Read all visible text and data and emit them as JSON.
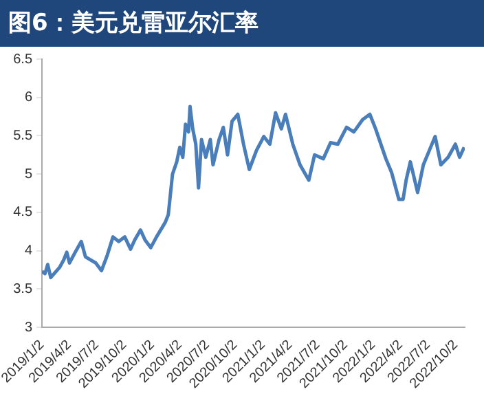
{
  "chart_data": {
    "type": "line",
    "title": "图6：美元兑雷亚尔汇率",
    "x": [
      "2019-01-02",
      "2019-01-12",
      "2019-01-21",
      "2019-01-31",
      "2019-03-01",
      "2019-03-15",
      "2019-03-25",
      "2019-04-03",
      "2019-04-22",
      "2019-05-12",
      "2019-05-26",
      "2019-06-29",
      "2019-07-18",
      "2019-08-06",
      "2019-08-25",
      "2019-09-13",
      "2019-10-03",
      "2019-10-22",
      "2019-11-05",
      "2019-11-24",
      "2019-12-09",
      "2019-12-28",
      "2020-01-16",
      "2020-02-14",
      "2020-02-24",
      "2020-03-09",
      "2020-03-23",
      "2020-04-02",
      "2020-04-12",
      "2020-04-21",
      "2020-05-01",
      "2020-05-06",
      "2020-05-15",
      "2020-05-25",
      "2020-06-03",
      "2020-06-13",
      "2020-06-27",
      "2020-07-12",
      "2020-07-21",
      "2020-08-10",
      "2020-08-24",
      "2020-09-07",
      "2020-09-22",
      "2020-10-11",
      "2020-10-30",
      "2020-11-18",
      "2020-12-12",
      "2021-01-05",
      "2021-01-25",
      "2021-02-13",
      "2021-03-04",
      "2021-03-18",
      "2021-04-11",
      "2021-05-05",
      "2021-06-03",
      "2021-06-22",
      "2021-07-21",
      "2021-08-14",
      "2021-09-07",
      "2021-10-06",
      "2021-10-30",
      "2021-11-28",
      "2021-12-22",
      "2022-01-10",
      "2022-02-13",
      "2022-03-04",
      "2022-03-28",
      "2022-04-11",
      "2022-04-21",
      "2022-05-05",
      "2022-05-29",
      "2022-06-17",
      "2022-07-07",
      "2022-07-26",
      "2022-08-14",
      "2022-09-07",
      "2022-10-01",
      "2022-10-15",
      "2022-10-30"
    ],
    "series": [
      {
        "color": "#4a7ebb",
        "values": [
          3.73,
          3.7,
          3.82,
          3.65,
          3.78,
          3.88,
          3.98,
          3.84,
          3.98,
          4.12,
          3.92,
          3.84,
          3.74,
          3.94,
          4.18,
          4.12,
          4.18,
          4.02,
          4.14,
          4.27,
          4.14,
          4.04,
          4.18,
          4.37,
          4.47,
          5.0,
          5.16,
          5.35,
          5.22,
          5.65,
          5.55,
          5.88,
          5.59,
          5.39,
          4.82,
          5.45,
          5.22,
          5.45,
          5.12,
          5.45,
          5.61,
          5.25,
          5.69,
          5.78,
          5.39,
          5.06,
          5.31,
          5.49,
          5.39,
          5.8,
          5.59,
          5.78,
          5.39,
          5.12,
          4.92,
          5.25,
          5.2,
          5.41,
          5.39,
          5.61,
          5.55,
          5.71,
          5.78,
          5.59,
          5.2,
          5.02,
          4.67,
          4.67,
          4.92,
          5.16,
          4.76,
          5.12,
          5.31,
          5.49,
          5.12,
          5.22,
          5.39,
          5.22,
          5.35
        ]
      }
    ],
    "xlim": [
      "2019-01-02",
      "2022-11-01"
    ],
    "xticks": [
      {
        "value": "2019-01-02",
        "label": "2019/1/2"
      },
      {
        "value": "2019-04-02",
        "label": "2019/4/2"
      },
      {
        "value": "2019-07-02",
        "label": "2019/7/2"
      },
      {
        "value": "2019-10-02",
        "label": "2019/10/2"
      },
      {
        "value": "2020-01-02",
        "label": "2020/1/2"
      },
      {
        "value": "2020-04-02",
        "label": "2020/4/2"
      },
      {
        "value": "2020-07-02",
        "label": "2020/7/2"
      },
      {
        "value": "2020-10-02",
        "label": "2020/10/2"
      },
      {
        "value": "2021-01-02",
        "label": "2021/1/2"
      },
      {
        "value": "2021-04-02",
        "label": "2021/4/2"
      },
      {
        "value": "2021-07-02",
        "label": "2021/7/2"
      },
      {
        "value": "2021-10-02",
        "label": "2021/10/2"
      },
      {
        "value": "2022-01-02",
        "label": "2022/1/2"
      },
      {
        "value": "2022-04-02",
        "label": "2022/4/2"
      },
      {
        "value": "2022-07-02",
        "label": "2022/7/2"
      },
      {
        "value": "2022-10-02",
        "label": "2022/10/2"
      }
    ],
    "ylim": [
      3,
      6.5
    ],
    "yticks": [
      3,
      3.5,
      4,
      4.5,
      5,
      5.5,
      6,
      6.5
    ],
    "grid": false,
    "legend": false,
    "marker": "none",
    "line_style": "solid"
  }
}
